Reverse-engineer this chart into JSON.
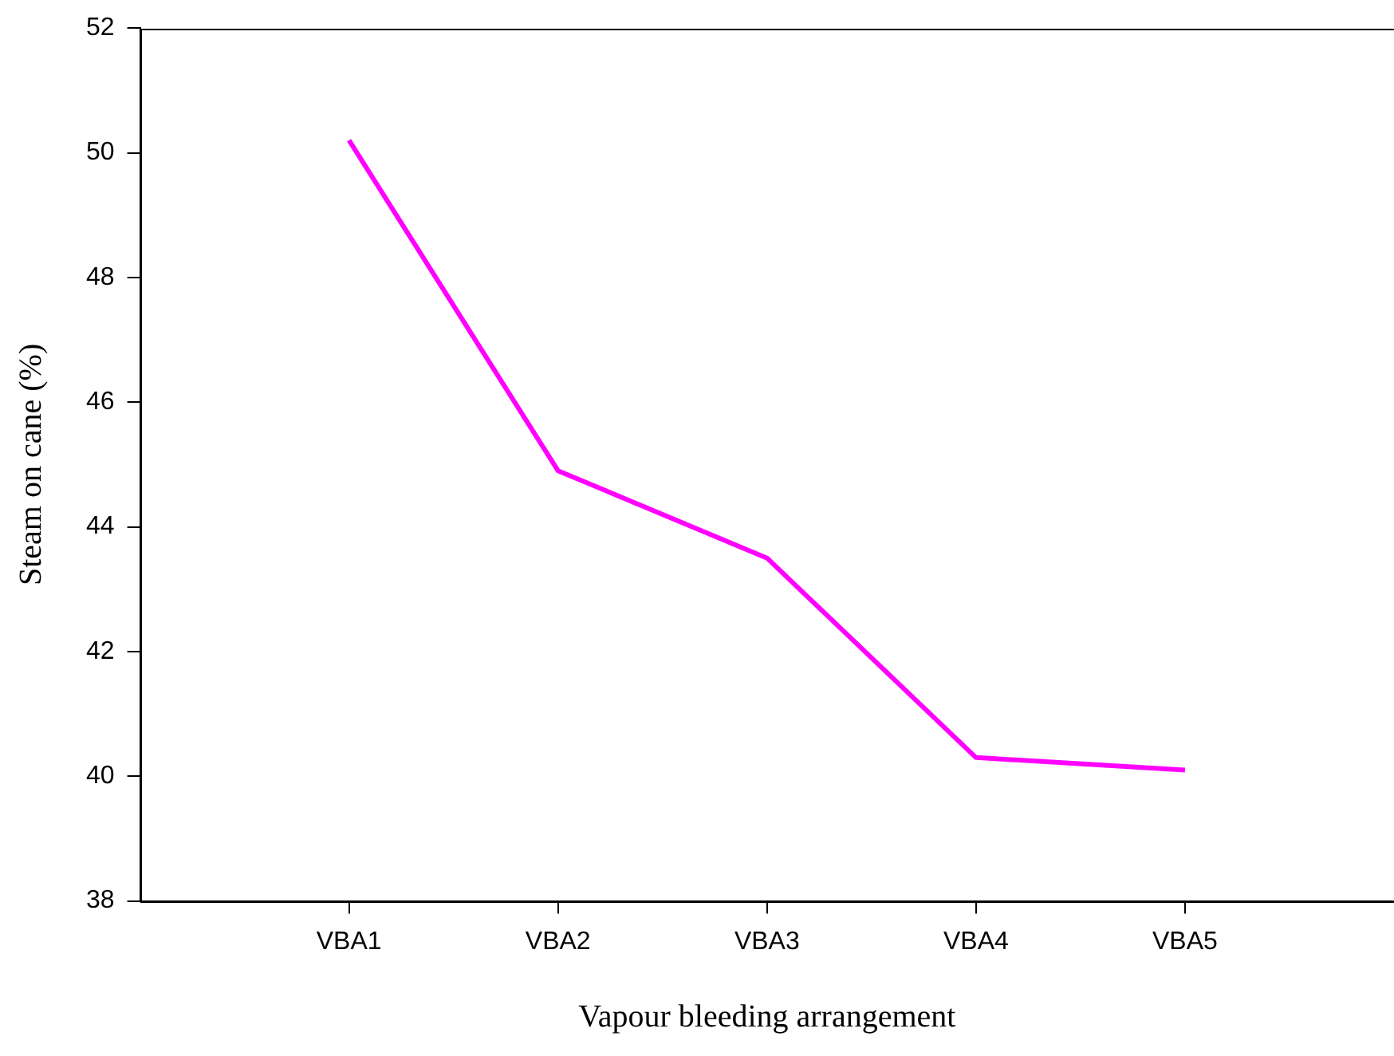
{
  "chart_data": {
    "type": "line",
    "xlabel": "Vapour bleeding arrangement",
    "ylabel": "Steam on cane (%)",
    "categories": [
      "VBA1",
      "VBA2",
      "VBA3",
      "VBA4",
      "VBA5"
    ],
    "series": [
      {
        "color": "#ff00ff",
        "values": [
          50.2,
          44.9,
          43.5,
          40.3,
          40.1
        ]
      }
    ],
    "ylim": [
      38,
      52
    ],
    "yticks": [
      38,
      40,
      42,
      44,
      46,
      48,
      50,
      52
    ],
    "grid": false,
    "legend": false,
    "marker": "none",
    "line_style": "solid"
  }
}
